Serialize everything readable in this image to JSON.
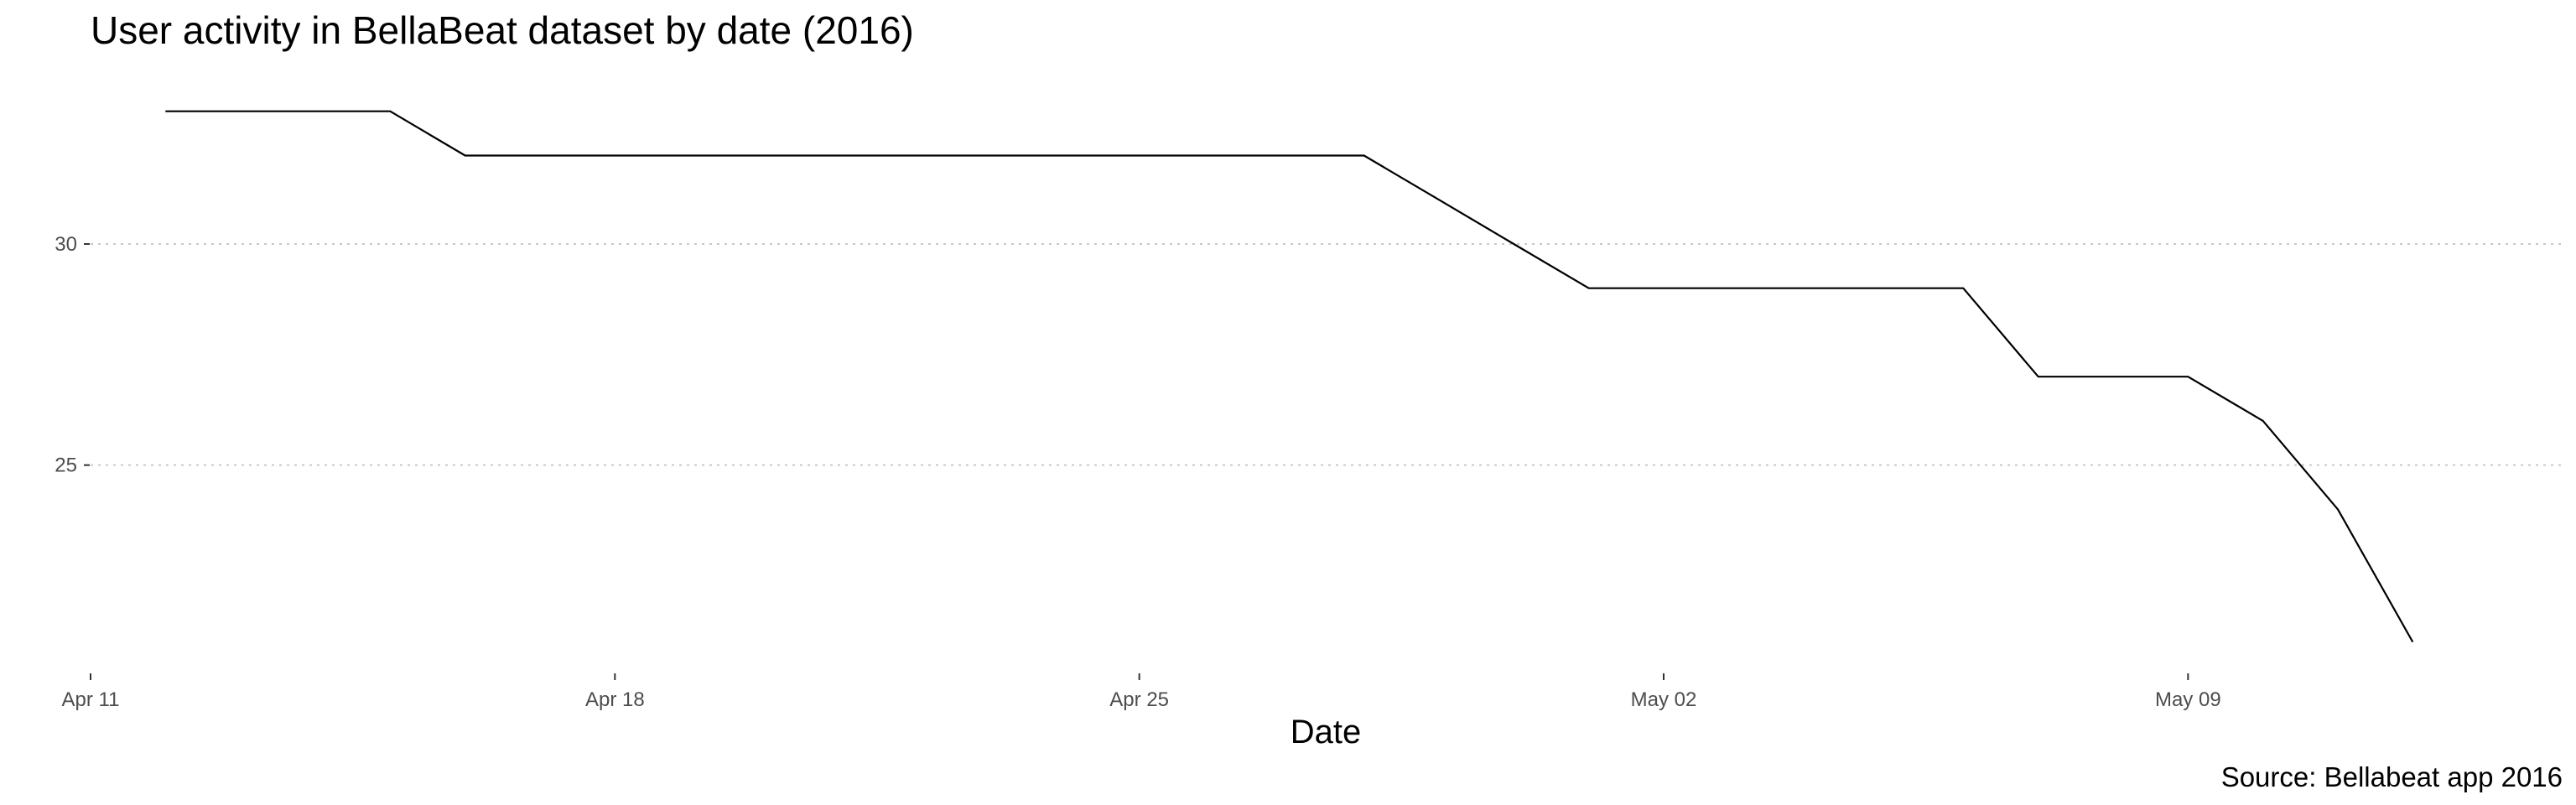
{
  "chart_data": {
    "type": "line",
    "title": "User activity in BellaBeat dataset by date (2016)",
    "xlabel": "Date",
    "ylabel": "",
    "caption": "Source: Bellabeat app 2016",
    "xlim": [
      "2016-04-11",
      "2016-05-14"
    ],
    "ylim": [
      20.5,
      34
    ],
    "y_ticks": [
      25,
      30
    ],
    "x_ticks": [
      {
        "date": "2016-04-11",
        "label": "Apr 11"
      },
      {
        "date": "2016-04-18",
        "label": "Apr 18"
      },
      {
        "date": "2016-04-25",
        "label": "Apr 25"
      },
      {
        "date": "2016-05-02",
        "label": "May 02"
      },
      {
        "date": "2016-05-09",
        "label": "May 09"
      }
    ],
    "grid": "horizontal-major-dotted",
    "legend": "none",
    "series": [
      {
        "color": "#000000",
        "x": [
          "2016-04-12",
          "2016-04-13",
          "2016-04-14",
          "2016-04-15",
          "2016-04-16",
          "2016-04-17",
          "2016-04-18",
          "2016-04-19",
          "2016-04-20",
          "2016-04-21",
          "2016-04-22",
          "2016-04-23",
          "2016-04-24",
          "2016-04-25",
          "2016-04-26",
          "2016-04-27",
          "2016-04-28",
          "2016-04-29",
          "2016-04-30",
          "2016-05-01",
          "2016-05-02",
          "2016-05-03",
          "2016-05-04",
          "2016-05-05",
          "2016-05-06",
          "2016-05-07",
          "2016-05-08",
          "2016-05-09",
          "2016-05-10",
          "2016-05-11",
          "2016-05-12"
        ],
        "values": [
          33,
          33,
          33,
          33,
          32,
          32,
          32,
          32,
          32,
          32,
          32,
          32,
          32,
          32,
          32,
          32,
          32,
          31,
          30,
          29,
          29,
          29,
          29,
          29,
          29,
          27,
          27,
          27,
          26,
          24,
          21
        ]
      }
    ]
  }
}
